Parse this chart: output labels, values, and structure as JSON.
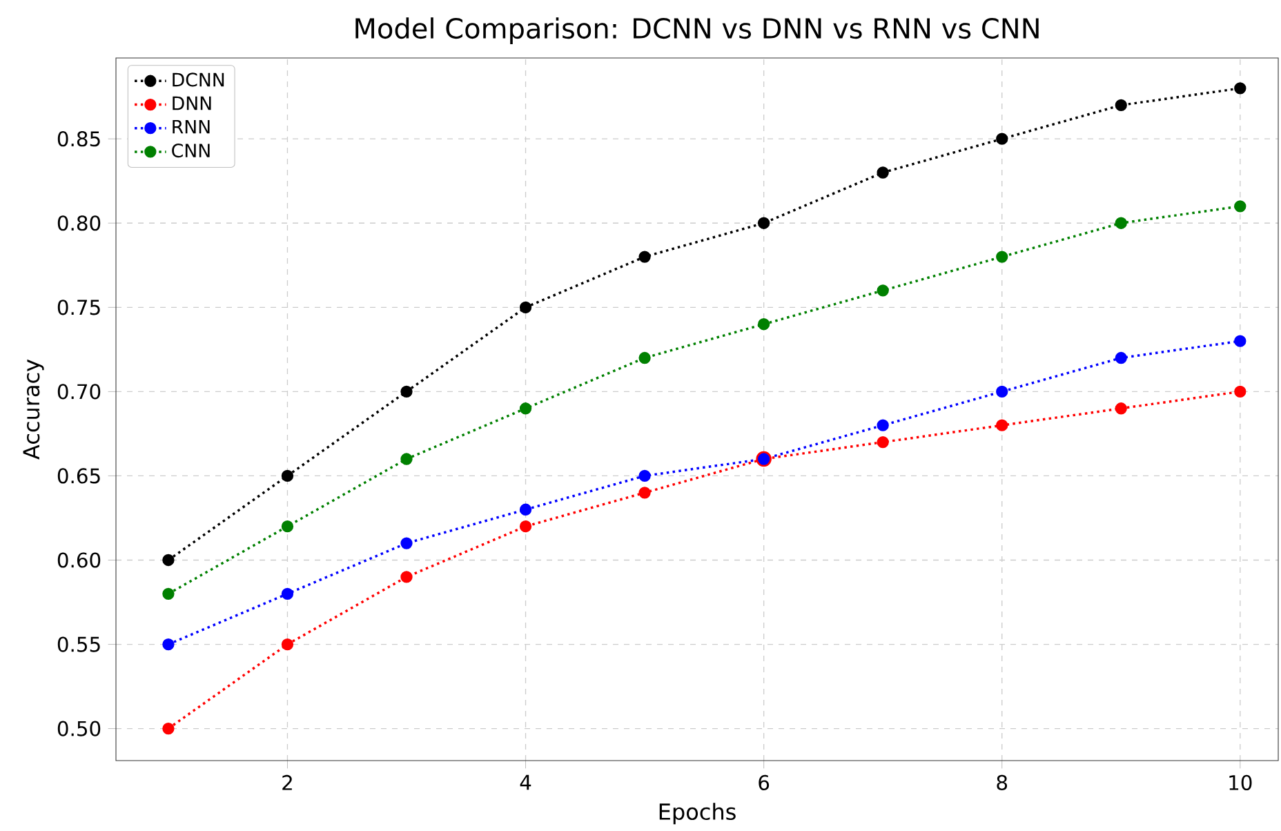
{
  "chart_data": {
    "type": "line",
    "title": "Model Comparison: DCNN vs DNN vs RNN vs CNN",
    "xlabel": "Epochs",
    "ylabel": "Accuracy",
    "x": [
      1,
      2,
      3,
      4,
      5,
      6,
      7,
      8,
      9,
      10
    ],
    "series": [
      {
        "name": "DCNN",
        "color": "#000000",
        "values": [
          0.6,
          0.65,
          0.7,
          0.75,
          0.78,
          0.8,
          0.83,
          0.85,
          0.87,
          0.88
        ]
      },
      {
        "name": "DNN",
        "color": "#ff0000",
        "values": [
          0.5,
          0.55,
          0.59,
          0.62,
          0.64,
          0.66,
          0.67,
          0.68,
          0.69,
          0.7
        ]
      },
      {
        "name": "RNN",
        "color": "#0000ff",
        "values": [
          0.55,
          0.58,
          0.61,
          0.63,
          0.65,
          0.66,
          0.68,
          0.7,
          0.72,
          0.73
        ]
      },
      {
        "name": "CNN",
        "color": "#008000",
        "values": [
          0.58,
          0.62,
          0.66,
          0.69,
          0.72,
          0.74,
          0.76,
          0.78,
          0.8,
          0.81
        ]
      }
    ],
    "xlim": [
      0.56,
      10.32
    ],
    "ylim": [
      0.481,
      0.898
    ],
    "xticks": [
      2,
      4,
      6,
      8,
      10
    ],
    "yticks": [
      {
        "value": 0.5,
        "label": "0.50"
      },
      {
        "value": 0.55,
        "label": "0.55"
      },
      {
        "value": 0.6,
        "label": "0.60"
      },
      {
        "value": 0.65,
        "label": "0.65"
      },
      {
        "value": 0.7,
        "label": "0.70"
      },
      {
        "value": 0.75,
        "label": "0.75"
      },
      {
        "value": 0.8,
        "label": "0.80"
      },
      {
        "value": 0.85,
        "label": "0.85"
      }
    ],
    "grid": true,
    "legend": "top left",
    "marker": "circle",
    "line_style": "dotted"
  }
}
